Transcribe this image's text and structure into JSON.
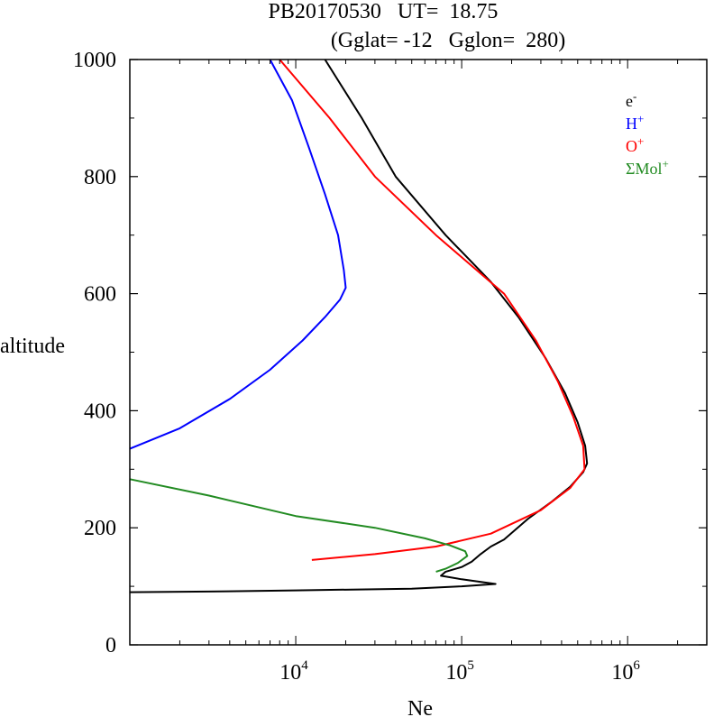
{
  "chart_data": {
    "type": "line",
    "title_line1": "PB20170530   UT=  18.75",
    "title_line2": "(Gglat= -12   Gglon=  280)",
    "xlabel": "Ne",
    "ylabel": "altitude",
    "x_scale": "log",
    "xlim": [
      1000,
      3000000
    ],
    "ylim": [
      0,
      1000
    ],
    "y_ticks": [
      0,
      200,
      400,
      600,
      800,
      1000
    ],
    "y_tick_labels": [
      "0",
      "200",
      "400",
      "600",
      "800",
      "1000"
    ],
    "x_major_ticks": [
      10000,
      100000,
      1000000
    ],
    "x_tick_labels": [
      {
        "base": "10",
        "exp": "4"
      },
      {
        "base": "10",
        "exp": "5"
      },
      {
        "base": "10",
        "exp": "6"
      }
    ],
    "legend_position": "top-right",
    "series": [
      {
        "name": "e-",
        "legend": {
          "base": "e",
          "sup": "-"
        },
        "color": "#000000",
        "points": [
          [
            1000,
            90
          ],
          [
            3000,
            91
          ],
          [
            10000,
            93
          ],
          [
            50000,
            96
          ],
          [
            100000,
            100
          ],
          [
            160000,
            104
          ],
          [
            100000,
            112
          ],
          [
            75000,
            118
          ],
          [
            80000,
            125
          ],
          [
            100000,
            133
          ],
          [
            115000,
            142
          ],
          [
            130000,
            155
          ],
          [
            150000,
            168
          ],
          [
            180000,
            180
          ],
          [
            250000,
            215
          ],
          [
            350000,
            245
          ],
          [
            450000,
            270
          ],
          [
            540000,
            295
          ],
          [
            570000,
            310
          ],
          [
            555000,
            340
          ],
          [
            500000,
            380
          ],
          [
            420000,
            430
          ],
          [
            320000,
            490
          ],
          [
            220000,
            560
          ],
          [
            150000,
            620
          ],
          [
            80000,
            700
          ],
          [
            40000,
            800
          ],
          [
            25000,
            900
          ],
          [
            15000,
            1000
          ]
        ]
      },
      {
        "name": "H+",
        "legend": {
          "base": "H",
          "sup": "+"
        },
        "color": "#0000ff",
        "points": [
          [
            1000,
            335
          ],
          [
            2000,
            370
          ],
          [
            4000,
            420
          ],
          [
            7000,
            470
          ],
          [
            11000,
            520
          ],
          [
            15000,
            560
          ],
          [
            18500,
            590
          ],
          [
            20000,
            610
          ],
          [
            19500,
            640
          ],
          [
            18000,
            700
          ],
          [
            15000,
            770
          ],
          [
            12000,
            850
          ],
          [
            9500,
            930
          ],
          [
            7000,
            1000
          ]
        ]
      },
      {
        "name": "O+",
        "legend": {
          "base": "O",
          "sup": "+"
        },
        "color": "#ff0000",
        "points": [
          [
            12500,
            145
          ],
          [
            30000,
            155
          ],
          [
            70000,
            168
          ],
          [
            150000,
            190
          ],
          [
            300000,
            230
          ],
          [
            450000,
            268
          ],
          [
            550000,
            300
          ],
          [
            540000,
            340
          ],
          [
            470000,
            390
          ],
          [
            380000,
            450
          ],
          [
            280000,
            520
          ],
          [
            180000,
            600
          ],
          [
            70000,
            700
          ],
          [
            30000,
            800
          ],
          [
            16000,
            900
          ],
          [
            8000,
            1000
          ]
        ]
      },
      {
        "name": "ΣMol+",
        "legend": {
          "base": "ΣMol",
          "sup": "+"
        },
        "color": "#228b22",
        "points": [
          [
            1000,
            283
          ],
          [
            3000,
            255
          ],
          [
            10000,
            220
          ],
          [
            30000,
            200
          ],
          [
            60000,
            182
          ],
          [
            85000,
            170
          ],
          [
            105000,
            160
          ],
          [
            108000,
            152
          ],
          [
            95000,
            140
          ],
          [
            80000,
            130
          ],
          [
            70000,
            125
          ]
        ]
      }
    ]
  }
}
